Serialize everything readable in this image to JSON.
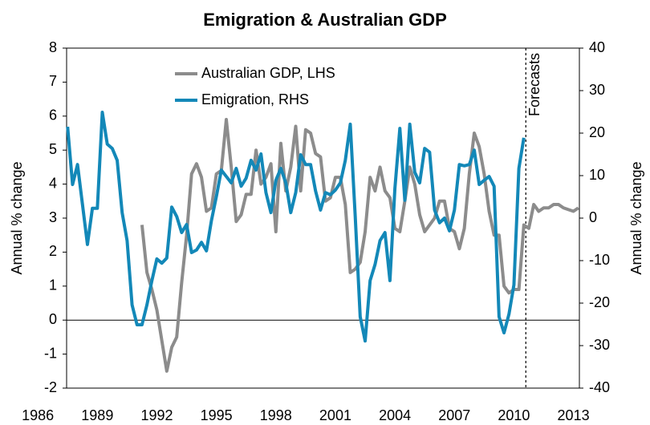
{
  "chart_data": {
    "type": "line",
    "title": "Emigration & Australian GDP",
    "ylabel": "Annual % change",
    "y2label": "Annual % change",
    "x": [
      1987.5,
      1987.75,
      1988,
      1988.25,
      1988.5,
      1988.75,
      1989,
      1989.25,
      1989.5,
      1989.75,
      1990,
      1990.25,
      1990.5,
      1990.75,
      1991,
      1991.25,
      1991.5,
      1991.75,
      1992,
      1992.25,
      1992.5,
      1992.75,
      1993,
      1993.25,
      1993.5,
      1993.75,
      1994,
      1994.25,
      1994.5,
      1994.75,
      1995,
      1995.25,
      1995.5,
      1995.75,
      1996,
      1996.25,
      1996.5,
      1996.75,
      1997,
      1997.25,
      1997.5,
      1997.75,
      1998,
      1998.25,
      1998.5,
      1998.75,
      1999,
      1999.25,
      1999.5,
      1999.75,
      2000,
      2000.25,
      2000.5,
      2000.75,
      2001,
      2001.25,
      2001.5,
      2001.75,
      2002,
      2002.25,
      2002.5,
      2002.75,
      2003,
      2003.25,
      2003.5,
      2003.75,
      2004,
      2004.25,
      2004.5,
      2004.75,
      2005,
      2005.25,
      2005.5,
      2005.75,
      2006,
      2006.25,
      2006.5,
      2006.75,
      2007,
      2007.25,
      2007.5,
      2007.75,
      2008,
      2008.25,
      2008.5,
      2008.75,
      2009,
      2009.25,
      2009.5,
      2009.75,
      2010,
      2010.25,
      2010.5,
      2010.75,
      2011,
      2011.25,
      2011.5,
      2011.75,
      2012,
      2012.25,
      2012.5,
      2012.75,
      2013,
      2013.25
    ],
    "series": [
      {
        "name": "Australian GDP, LHS",
        "color": "#8c8c8c",
        "axis": "y",
        "values": [
          null,
          null,
          null,
          null,
          null,
          null,
          null,
          null,
          null,
          null,
          null,
          null,
          null,
          null,
          null,
          2.8,
          1.4,
          0.9,
          0.3,
          -0.6,
          -1.5,
          -0.8,
          -0.5,
          1.1,
          2.5,
          4.3,
          4.6,
          4.2,
          3.2,
          3.3,
          4.3,
          4.4,
          5.9,
          4.5,
          2.9,
          3.1,
          3.7,
          3.7,
          5.0,
          4.0,
          4.2,
          4.6,
          2.6,
          5.2,
          3.8,
          4.5,
          5.7,
          3.8,
          5.6,
          5.5,
          4.9,
          4.8,
          3.5,
          3.6,
          4.2,
          4.2,
          3.4,
          1.4,
          1.5,
          1.7,
          2.6,
          4.2,
          3.8,
          4.5,
          3.8,
          3.6,
          2.7,
          2.6,
          3.5,
          4.5,
          4.0,
          3.1,
          2.6,
          2.8,
          3.0,
          3.5,
          3.5,
          2.7,
          2.6,
          2.1,
          2.7,
          4.3,
          5.5,
          5.1,
          4.3,
          3.2,
          2.5,
          2.5,
          1.0,
          0.8,
          0.9,
          0.9,
          2.8,
          2.7,
          3.4,
          3.2,
          3.3,
          3.3,
          3.4,
          3.4,
          3.3,
          3.25,
          3.2,
          3.3
        ]
      },
      {
        "name": "Emigration, RHS",
        "color": "#1388b8",
        "axis": "y2",
        "values": [
          21.5,
          7.9,
          12.6,
          3.2,
          -6.2,
          2.3,
          2.3,
          24.9,
          17.4,
          16.4,
          13.6,
          1.3,
          -5.3,
          -20.4,
          -25.1,
          -25.1,
          -20.4,
          -14.7,
          -9.6,
          -10.6,
          -9.4,
          2.6,
          0.4,
          -3.4,
          -1.5,
          -8.1,
          -7.5,
          -5.7,
          -7.7,
          -0.6,
          5.1,
          11.3,
          9.8,
          8.3,
          11.7,
          7.5,
          9.4,
          13.6,
          11.3,
          15.1,
          6.0,
          1.3,
          8.9,
          11.7,
          8.3,
          1.3,
          6.0,
          14.9,
          12.6,
          12.6,
          6.4,
          1.9,
          6.0,
          5.5,
          6.6,
          8.3,
          13.6,
          22.1,
          0.4,
          -23.2,
          -28.9,
          -14.7,
          -10.9,
          -5.3,
          -3.4,
          -14.7,
          7.0,
          21.1,
          4.2,
          22.1,
          10.8,
          8.3,
          16.4,
          15.5,
          1.9,
          -1.1,
          0,
          -3.0,
          1.9,
          12.6,
          12.3,
          12.6,
          16.0,
          7.9,
          8.9,
          9.8,
          7.5,
          -23.2,
          -27.0,
          -22.6,
          -15.7,
          11.7,
          18.9,
          null,
          null,
          null,
          null,
          null,
          null,
          null,
          null,
          null,
          null,
          null
        ]
      }
    ],
    "xlim": [
      1987.45,
      2013.3
    ],
    "xticks": [
      1986,
      1989,
      1992,
      1995,
      1998,
      2001,
      2004,
      2007,
      2010,
      2013
    ],
    "ylim": [
      -2,
      8
    ],
    "yticks": [
      -2,
      -1,
      0,
      1,
      2,
      3,
      4,
      5,
      6,
      7,
      8
    ],
    "y2lim": [
      -40,
      40
    ],
    "y2ticks": [
      -40,
      -30,
      -20,
      -10,
      0,
      10,
      20,
      30,
      40
    ],
    "legend": "upper-left",
    "grid": false,
    "annotations": [
      {
        "text": "Forecasts",
        "x": 2010.6
      }
    ]
  }
}
